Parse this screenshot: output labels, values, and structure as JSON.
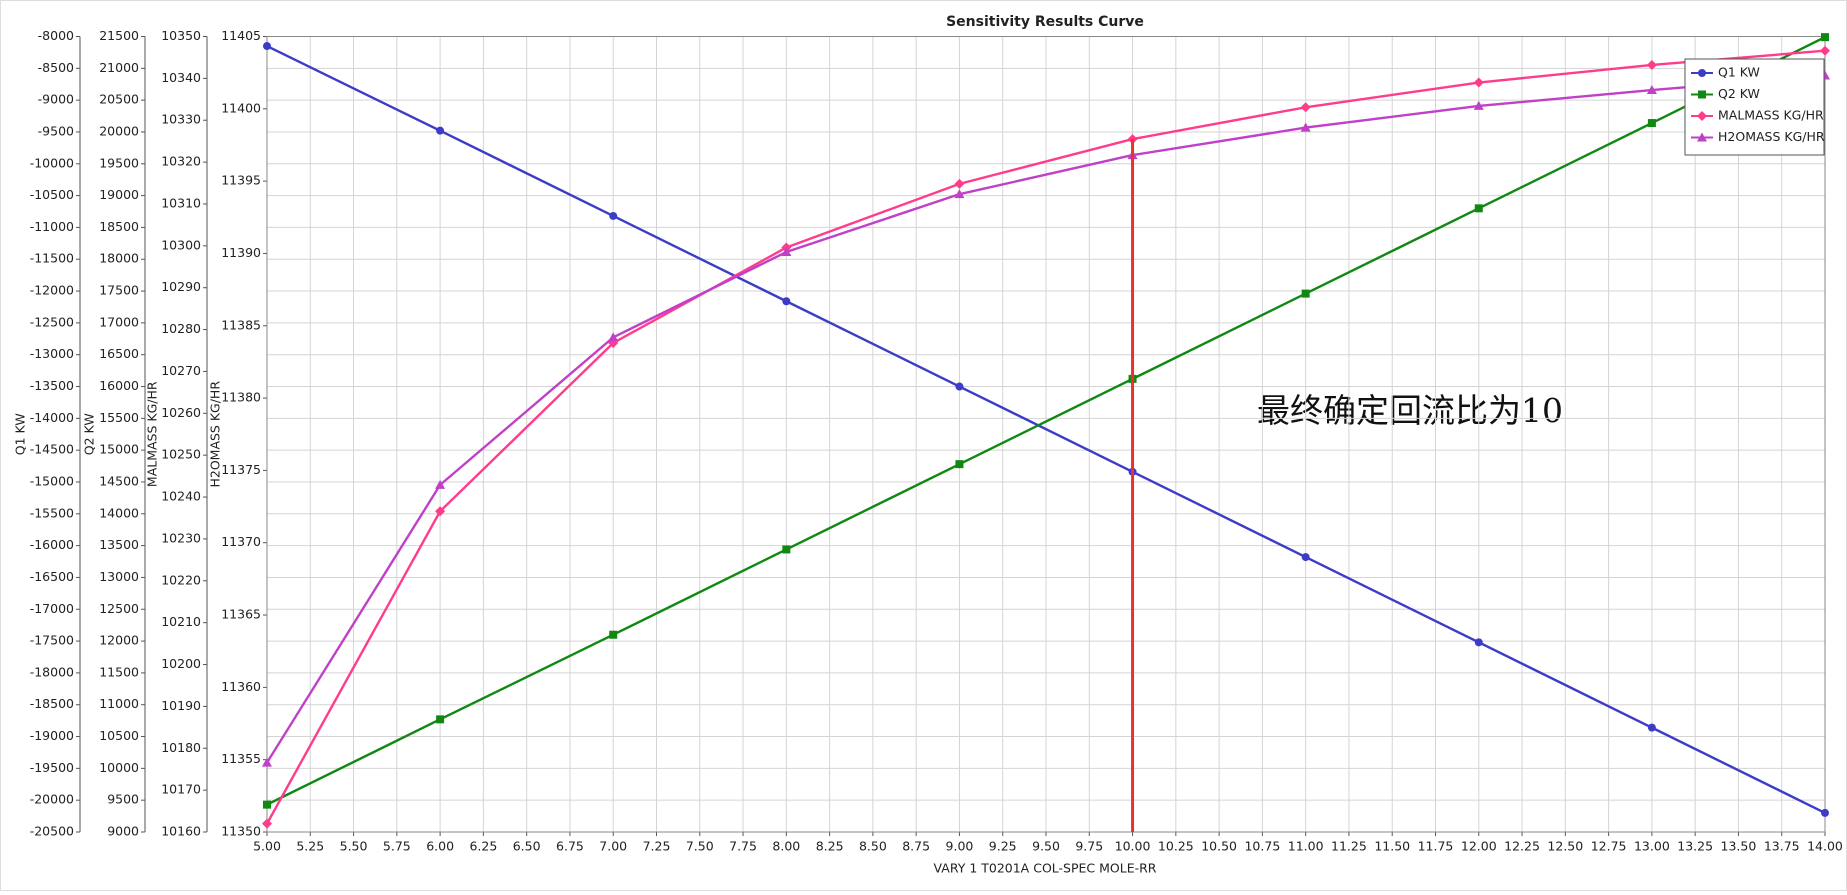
{
  "chart_data": {
    "type": "line",
    "title": "Sensitivity Results Curve",
    "x_label": "VARY   1 T0201A COL-SPEC MOLE-RR",
    "x": [
      5,
      6,
      7,
      8,
      9,
      10,
      11,
      12,
      13,
      14
    ],
    "xlim": [
      5,
      14
    ],
    "xticks": [
      {
        "value": 5,
        "label": "5.00"
      },
      {
        "value": 5.25,
        "label": "5.25"
      },
      {
        "value": 5.5,
        "label": "5.50"
      },
      {
        "value": 5.75,
        "label": "5.75"
      },
      {
        "value": 6,
        "label": "6.00"
      },
      {
        "value": 6.25,
        "label": "6.25"
      },
      {
        "value": 6.5,
        "label": "6.50"
      },
      {
        "value": 6.75,
        "label": "6.75"
      },
      {
        "value": 7,
        "label": "7.00"
      },
      {
        "value": 7.25,
        "label": "7.25"
      },
      {
        "value": 7.5,
        "label": "7.50"
      },
      {
        "value": 7.75,
        "label": "7.75"
      },
      {
        "value": 8,
        "label": "8.00"
      },
      {
        "value": 8.25,
        "label": "8.25"
      },
      {
        "value": 8.5,
        "label": "8.50"
      },
      {
        "value": 8.75,
        "label": "8.75"
      },
      {
        "value": 9,
        "label": "9.00"
      },
      {
        "value": 9.25,
        "label": "9.25"
      },
      {
        "value": 9.5,
        "label": "9.50"
      },
      {
        "value": 9.75,
        "label": "9.75"
      },
      {
        "value": 10,
        "label": "10.00"
      },
      {
        "value": 10.25,
        "label": "10.25"
      },
      {
        "value": 10.5,
        "label": "10.50"
      },
      {
        "value": 10.75,
        "label": "10.75"
      },
      {
        "value": 11,
        "label": "11.00"
      },
      {
        "value": 11.25,
        "label": "11.25"
      },
      {
        "value": 11.5,
        "label": "11.50"
      },
      {
        "value": 11.75,
        "label": "11.75"
      },
      {
        "value": 12,
        "label": "12.00"
      },
      {
        "value": 12.25,
        "label": "12.25"
      },
      {
        "value": 12.5,
        "label": "12.50"
      },
      {
        "value": 12.75,
        "label": "12.75"
      },
      {
        "value": 13,
        "label": "13.00"
      },
      {
        "value": 13.25,
        "label": "13.25"
      },
      {
        "value": 13.5,
        "label": "13.50"
      },
      {
        "value": 13.75,
        "label": "13.75"
      },
      {
        "value": 14,
        "label": "14.00"
      }
    ],
    "grid": true,
    "y_axes": [
      {
        "label": "Q1 KW",
        "lim": [
          -20500,
          -8000
        ],
        "ticks": [
          -8000,
          -8500,
          -9000,
          -9500,
          -10000,
          -10500,
          -11000,
          -11500,
          -12000,
          -12500,
          -13000,
          -13500,
          -14000,
          -14500,
          -15000,
          -15500,
          -16000,
          -16500,
          -17000,
          -17500,
          -18000,
          -18500,
          -19000,
          -19500,
          -20000,
          -20500
        ]
      },
      {
        "label": "Q2 KW",
        "lim": [
          9000,
          21500
        ],
        "ticks": [
          21500,
          21000,
          20500,
          20000,
          19500,
          19000,
          18500,
          18000,
          17500,
          17000,
          16500,
          16000,
          15500,
          15000,
          14500,
          14000,
          13500,
          13000,
          12500,
          12000,
          11500,
          11000,
          10500,
          10000,
          9500,
          9000
        ]
      },
      {
        "label": "MALMASS KG/HR",
        "lim": [
          10160,
          10350
        ],
        "ticks": [
          10350,
          10340,
          10330,
          10320,
          10310,
          10300,
          10290,
          10280,
          10270,
          10260,
          10250,
          10240,
          10230,
          10220,
          10210,
          10200,
          10190,
          10180,
          10170,
          10160
        ]
      },
      {
        "label": "H2OMASS KG/HR",
        "lim": [
          11350,
          11405
        ],
        "ticks": [
          11405,
          11400,
          11395,
          11390,
          11385,
          11380,
          11375,
          11370,
          11365,
          11360,
          11355,
          11350
        ]
      }
    ],
    "series": [
      {
        "name": "Q1 KW",
        "color": "#3c3cc8",
        "marker": "circle",
        "axis": 0,
        "values": [
          -8150,
          -9480,
          -10820,
          -12160,
          -13500,
          -14840,
          -16180,
          -17520,
          -18860,
          -20200
        ]
      },
      {
        "name": "Q2 KW",
        "color": "#118811",
        "marker": "square",
        "axis": 1,
        "values": [
          9430,
          10770,
          12100,
          13440,
          14780,
          16120,
          17460,
          18800,
          20140,
          21490
        ]
      },
      {
        "name": "MALMASS KG/HR",
        "color": "#ff3c8c",
        "marker": "diamond",
        "axis": 2,
        "values": [
          10162,
          10236.6,
          10276.8,
          10299.6,
          10314.8,
          10325.5,
          10333.1,
          10339,
          10343.2,
          10346.6
        ]
      },
      {
        "name": "H2OMASS KG/HR",
        "color": "#c040c8",
        "marker": "triangle",
        "axis": 3,
        "values": [
          11354.8,
          11374,
          11384.2,
          11390.1,
          11394.1,
          11396.8,
          11398.7,
          11400.2,
          11401.3,
          11402.3
        ]
      }
    ],
    "vline": {
      "x": 10,
      "color": "#e8322f"
    },
    "annotation": "最终确定回流比为10"
  }
}
